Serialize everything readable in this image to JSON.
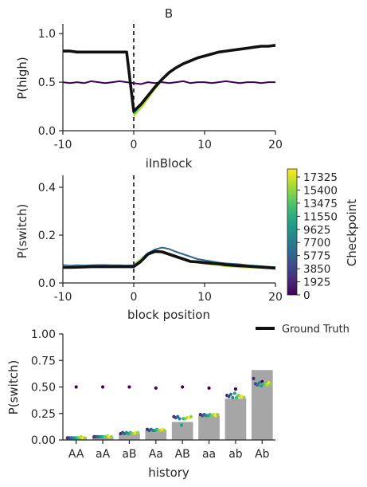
{
  "figure": {
    "title": "B"
  },
  "colors": {
    "ground_truth": "#111111",
    "bar": "#a6a6a6",
    "axis": "#262626",
    "viridis": [
      "#440154",
      "#482878",
      "#3e4989",
      "#31688e",
      "#26828e",
      "#1f9e89",
      "#35b779",
      "#6ece58",
      "#b5de2b",
      "#fde725"
    ]
  },
  "chart_data": [
    {
      "id": "top",
      "type": "line",
      "title": "B",
      "xlabel": "iInBlock",
      "ylabel": "P(high)",
      "xlim": [
        -10,
        20
      ],
      "ylim": [
        0,
        1.1
      ],
      "xticks": [
        -10,
        0,
        10,
        20
      ],
      "yticks": [
        0.0,
        0.5,
        1.0
      ],
      "ytick_labels": [
        "0.0",
        "0.5",
        "1.0"
      ],
      "vline_x": 0,
      "series": [
        {
          "name": "Ground Truth",
          "checkpoint": null,
          "color": "#111111",
          "x": [
            -10,
            -9,
            -8,
            -7,
            -6,
            -5,
            -4,
            -3,
            -2,
            -1,
            0,
            1,
            2,
            3,
            4,
            5,
            6,
            7,
            8,
            9,
            10,
            11,
            12,
            13,
            14,
            15,
            16,
            17,
            18,
            19,
            20
          ],
          "y": [
            0.82,
            0.82,
            0.81,
            0.81,
            0.81,
            0.81,
            0.81,
            0.81,
            0.81,
            0.81,
            0.2,
            0.27,
            0.36,
            0.45,
            0.53,
            0.6,
            0.65,
            0.69,
            0.72,
            0.75,
            0.77,
            0.79,
            0.81,
            0.82,
            0.83,
            0.84,
            0.85,
            0.86,
            0.87,
            0.87,
            0.88
          ]
        },
        {
          "checkpoint": 0,
          "color": "#440154",
          "x": [
            -10,
            -9,
            -8,
            -7,
            -6,
            -5,
            -4,
            -3,
            -2,
            -1,
            0,
            1,
            2,
            3,
            4,
            5,
            6,
            7,
            8,
            9,
            10,
            11,
            12,
            13,
            14,
            15,
            16,
            17,
            18,
            19,
            20
          ],
          "y": [
            0.5,
            0.49,
            0.5,
            0.49,
            0.51,
            0.5,
            0.49,
            0.5,
            0.51,
            0.5,
            0.49,
            0.48,
            0.5,
            0.49,
            0.5,
            0.49,
            0.5,
            0.51,
            0.49,
            0.5,
            0.5,
            0.49,
            0.5,
            0.51,
            0.5,
            0.49,
            0.5,
            0.5,
            0.49,
            0.5,
            0.5
          ]
        },
        {
          "checkpoint": 1925,
          "color": "#35b779",
          "x": [
            0,
            1,
            2,
            3,
            4,
            5
          ],
          "y": [
            0.17,
            0.26,
            0.35,
            0.45,
            0.53,
            0.6
          ]
        },
        {
          "checkpoint": 3850,
          "color": "#b5de2b",
          "x": [
            0,
            1,
            2,
            3,
            4,
            5,
            6
          ],
          "y": [
            0.15,
            0.23,
            0.33,
            0.43,
            0.52,
            0.6,
            0.65
          ]
        }
      ]
    },
    {
      "id": "middle",
      "type": "line",
      "xlabel": "block position",
      "ylabel": "P(switch)",
      "xlim": [
        -10,
        20
      ],
      "ylim": [
        0,
        0.45
      ],
      "xticks": [
        -10,
        0,
        10,
        20
      ],
      "yticks": [
        0.0,
        0.2,
        0.4
      ],
      "ytick_labels": [
        "0.0",
        "0.2",
        "0.4"
      ],
      "vline_x": 0,
      "series": [
        {
          "name": "Ground Truth",
          "checkpoint": null,
          "color": "#111111",
          "x": [
            -10,
            -9,
            -8,
            -7,
            -6,
            -5,
            -4,
            -3,
            -2,
            -1,
            0,
            1,
            2,
            3,
            4,
            5,
            6,
            7,
            8,
            9,
            10,
            11,
            12,
            13,
            14,
            15,
            16,
            17,
            18,
            19,
            20
          ],
          "y": [
            0.065,
            0.065,
            0.066,
            0.067,
            0.068,
            0.068,
            0.068,
            0.068,
            0.068,
            0.068,
            0.068,
            0.09,
            0.12,
            0.132,
            0.13,
            0.12,
            0.11,
            0.1,
            0.09,
            0.088,
            0.085,
            0.082,
            0.08,
            0.076,
            0.074,
            0.072,
            0.07,
            0.068,
            0.066,
            0.064,
            0.062
          ]
        },
        {
          "checkpoint": 7700,
          "color": "#31688e",
          "x": [
            -10,
            -9,
            -8,
            -7,
            -6,
            -5,
            -4,
            -3,
            -2,
            -1,
            0,
            1,
            2,
            3,
            4,
            5,
            6,
            7,
            8,
            9,
            10,
            11,
            12,
            13,
            14,
            15,
            16,
            17,
            18,
            19,
            20
          ],
          "y": [
            0.075,
            0.072,
            0.074,
            0.073,
            0.074,
            0.075,
            0.075,
            0.074,
            0.074,
            0.073,
            0.074,
            0.1,
            0.125,
            0.14,
            0.148,
            0.142,
            0.13,
            0.12,
            0.11,
            0.1,
            0.095,
            0.09,
            0.085,
            0.082,
            0.08,
            0.078,
            0.074,
            0.072,
            0.07,
            0.068,
            0.066
          ]
        },
        {
          "checkpoint": 17325,
          "color": "#b5de2b",
          "x": [
            -10,
            -9,
            -8,
            -7,
            -6,
            -5,
            -4,
            -3,
            -2,
            -1,
            0,
            1,
            2,
            3,
            4,
            5,
            6,
            7,
            8,
            9,
            10,
            11,
            12,
            13,
            14,
            15,
            16,
            17,
            18,
            19,
            20
          ],
          "y": [
            0.07,
            0.068,
            0.07,
            0.07,
            0.069,
            0.07,
            0.07,
            0.071,
            0.07,
            0.07,
            0.07,
            0.1,
            0.12,
            0.13,
            0.13,
            0.122,
            0.11,
            0.1,
            0.09,
            0.085,
            0.08,
            0.078,
            0.074,
            0.07,
            0.068,
            0.066,
            0.065,
            0.064,
            0.063,
            0.062,
            0.062
          ]
        }
      ]
    },
    {
      "id": "bottom",
      "type": "bar",
      "xlabel": "history",
      "ylabel": "P(switch)",
      "ylim": [
        0,
        1.0
      ],
      "yticks": [
        0.0,
        0.25,
        0.5,
        0.75,
        1.0
      ],
      "ytick_labels": [
        "0.00",
        "0.25",
        "0.50",
        "0.75",
        "1.00"
      ],
      "categories": [
        "AA",
        "aA",
        "aB",
        "Aa",
        "AB",
        "aa",
        "ab",
        "Ab"
      ],
      "values": [
        0.02,
        0.03,
        0.06,
        0.09,
        0.17,
        0.23,
        0.39,
        0.66
      ],
      "dots": [
        [
          0.5,
          0.02,
          0.02,
          0.02,
          0.02,
          0.02,
          0.02,
          0.02,
          0.03,
          0.02,
          0.02
        ],
        [
          0.5,
          0.03,
          0.03,
          0.03,
          0.03,
          0.03,
          0.03,
          0.03,
          0.04,
          0.03,
          0.03
        ],
        [
          0.5,
          0.06,
          0.07,
          0.06,
          0.07,
          0.06,
          0.07,
          0.06,
          0.06,
          0.07,
          0.07
        ],
        [
          0.49,
          0.1,
          0.09,
          0.1,
          0.09,
          0.09,
          0.1,
          0.09,
          0.09,
          0.1,
          0.09
        ],
        [
          0.5,
          0.22,
          0.21,
          0.22,
          0.2,
          0.14,
          0.2,
          0.2,
          0.21,
          0.21,
          0.22
        ],
        [
          0.49,
          0.24,
          0.23,
          0.24,
          0.23,
          0.23,
          0.24,
          0.23,
          0.24,
          0.23,
          0.24
        ],
        [
          0.48,
          0.42,
          0.41,
          0.43,
          0.4,
          0.44,
          0.4,
          0.42,
          0.41,
          0.41,
          0.4
        ],
        [
          0.55,
          0.58,
          0.53,
          0.52,
          0.54,
          0.51,
          0.53,
          0.53,
          0.52,
          0.54,
          0.53
        ]
      ]
    }
  ],
  "colorbar": {
    "label": "Checkpoint",
    "ticks": [
      0,
      1925,
      3850,
      5775,
      7700,
      9625,
      11550,
      13475,
      15400,
      17325
    ],
    "range": [
      0,
      18500
    ]
  },
  "legend": {
    "label": "Ground Truth",
    "placement": "bottom-right"
  }
}
